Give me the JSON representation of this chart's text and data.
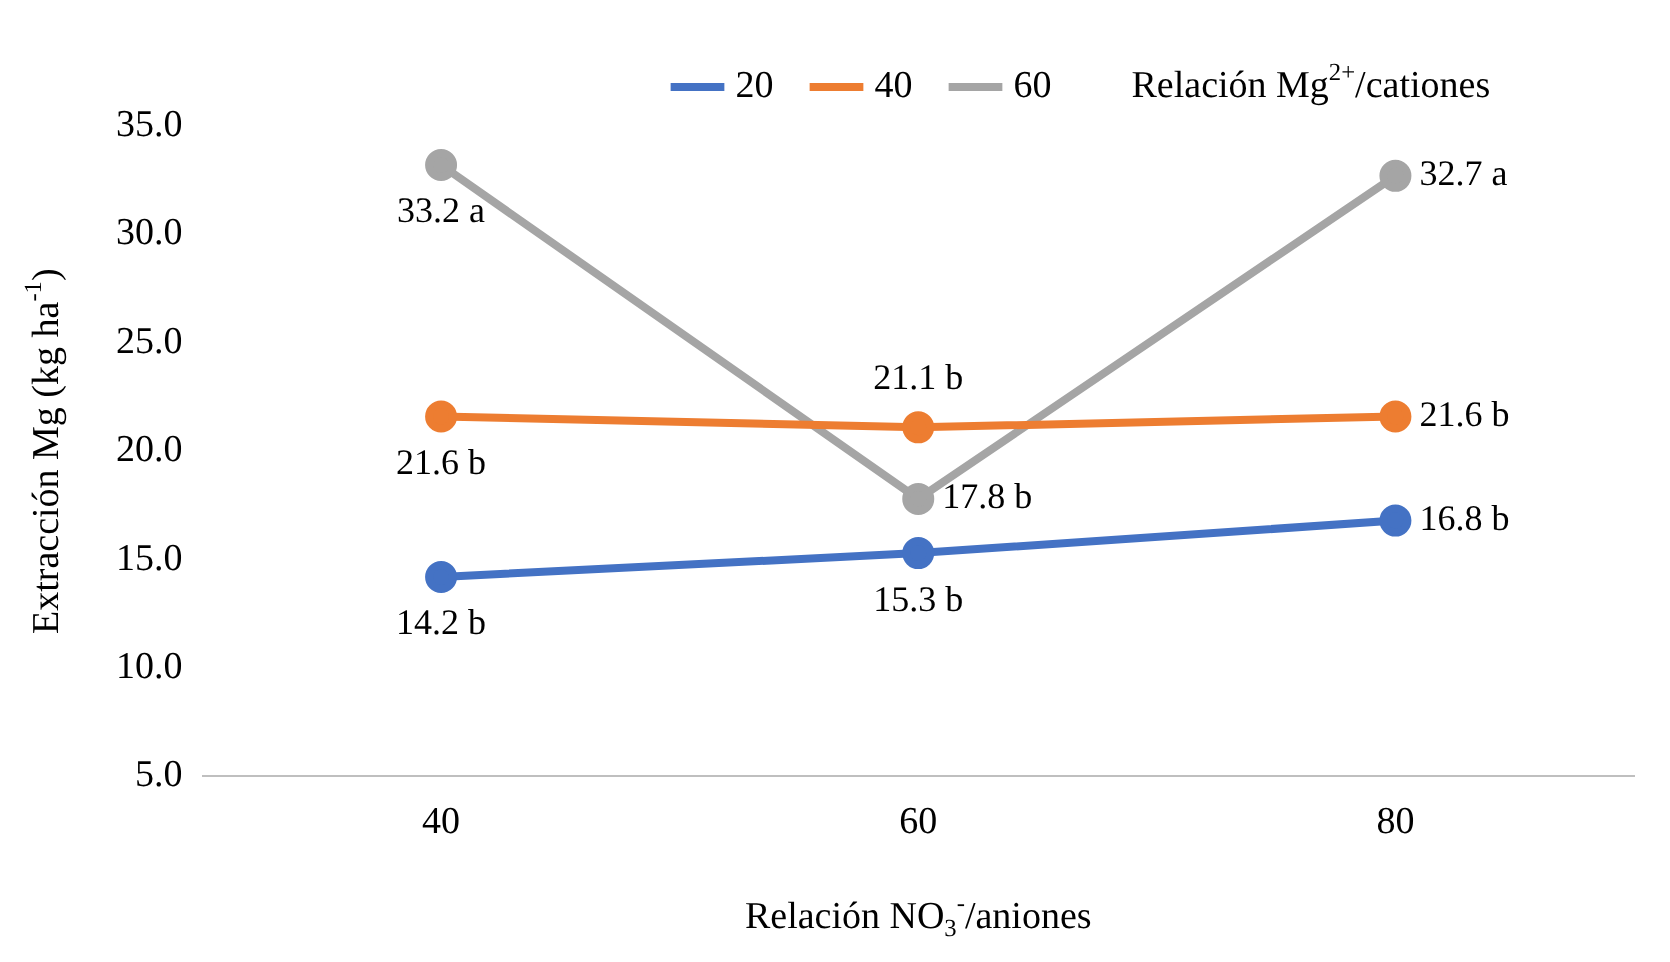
{
  "chart_data": {
    "type": "line",
    "categories": [
      "40",
      "60",
      "80"
    ],
    "series": [
      {
        "name": "20",
        "color": "#4472c4",
        "values": [
          14.2,
          15.3,
          16.8
        ],
        "value_labels": [
          "14.2 b",
          "15.3 b",
          "16.8 b"
        ]
      },
      {
        "name": "40",
        "color": "#ed7d31",
        "values": [
          21.6,
          21.1,
          21.6
        ],
        "value_labels": [
          "21.6 b",
          "21.1 b",
          "21.6 b"
        ]
      },
      {
        "name": "60",
        "color": "#a5a5a5",
        "values": [
          33.2,
          17.8,
          32.7
        ],
        "value_labels": [
          "33.2 a",
          "17.8 b",
          "32.7 a"
        ]
      }
    ],
    "xlabel": "Relación NO$_{3}$$^{-}$/aniones",
    "ylabel": "Extracción Mg (kg ha$^{-1}$)",
    "legend_title": "Relación Mg$^{2+}$/cationes",
    "ylim": [
      5,
      35
    ],
    "yticks": [
      {
        "value": 5,
        "label": "5.0"
      },
      {
        "value": 10,
        "label": "10.0"
      },
      {
        "value": 15,
        "label": "15.0"
      },
      {
        "value": 20,
        "label": "20.0"
      },
      {
        "value": 25,
        "label": "25.0"
      },
      {
        "value": 30,
        "label": "30.0"
      },
      {
        "value": 35,
        "label": "35.0"
      }
    ],
    "grid": false,
    "legend": "top",
    "marker": "circle",
    "line_style": "solid"
  }
}
